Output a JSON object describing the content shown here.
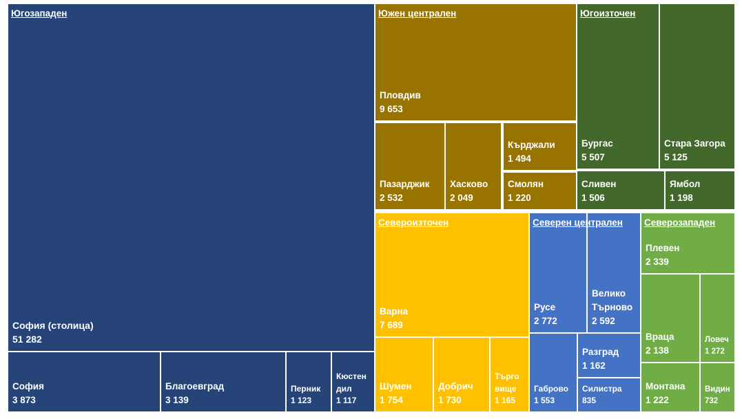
{
  "chart_data": {
    "type": "treemap",
    "colors": {
      "Югозападен": "#264478",
      "Южен централен": "#997300",
      "Югоизточен": "#43682b",
      "Североизточен": "#ffc000",
      "Северен централен": "#4472c4",
      "Северозападен": "#70ad47"
    },
    "regions": [
      {
        "name": "Югозападен",
        "children": [
          {
            "name": "София (столица)",
            "value": 51282,
            "label": "51 282"
          },
          {
            "name": "София",
            "value": 3873,
            "label": "3 873"
          },
          {
            "name": "Благоевград",
            "value": 3139,
            "label": "3 139"
          },
          {
            "name": "Перник",
            "value": 1123,
            "label": "1 123"
          },
          {
            "name": "Кюстен дил",
            "value": 1117,
            "label": "1 117"
          }
        ]
      },
      {
        "name": "Южен централен",
        "children": [
          {
            "name": "Пловдив",
            "value": 9653,
            "label": "9 653"
          },
          {
            "name": "Пазарджик",
            "value": 2532,
            "label": "2 532"
          },
          {
            "name": "Хасково",
            "value": 2049,
            "label": "2 049"
          },
          {
            "name": "Кърджали",
            "value": 1494,
            "label": "1 494"
          },
          {
            "name": "Смолян",
            "value": 1220,
            "label": "1 220"
          }
        ]
      },
      {
        "name": "Югоизточен",
        "children": [
          {
            "name": "Бургас",
            "value": 5507,
            "label": "5 507"
          },
          {
            "name": "Стара Загора",
            "value": 5125,
            "label": "5 125"
          },
          {
            "name": "Сливен",
            "value": 1506,
            "label": "1 506"
          },
          {
            "name": "Ямбол",
            "value": 1198,
            "label": "1 198"
          }
        ]
      },
      {
        "name": "Североизточен",
        "children": [
          {
            "name": "Варна",
            "value": 7689,
            "label": "7 689"
          },
          {
            "name": "Шумен",
            "value": 1754,
            "label": "1 754"
          },
          {
            "name": "Добрич",
            "value": 1730,
            "label": "1 730"
          },
          {
            "name": "Търго вище",
            "value": 1165,
            "label": "1 165"
          }
        ]
      },
      {
        "name": "Северен централен",
        "children": [
          {
            "name": "Русе",
            "value": 2772,
            "label": "2 772"
          },
          {
            "name": "Велико Търново",
            "value": 2592,
            "label": "2 592"
          },
          {
            "name": "Габрово",
            "value": 1553,
            "label": "1 553"
          },
          {
            "name": "Разград",
            "value": 1162,
            "label": "1 162"
          },
          {
            "name": "Силистра",
            "value": 835,
            "label": "835"
          }
        ]
      },
      {
        "name": "Северозападен",
        "children": [
          {
            "name": "Плевен",
            "value": 2339,
            "label": "2 339"
          },
          {
            "name": "Враца",
            "value": 2138,
            "label": "2 138"
          },
          {
            "name": "Ловеч",
            "value": 1272,
            "label": "1 272"
          },
          {
            "name": "Монтана",
            "value": 1222,
            "label": "1 222"
          },
          {
            "name": "Видин",
            "value": 732,
            "label": "732"
          }
        ]
      }
    ]
  }
}
